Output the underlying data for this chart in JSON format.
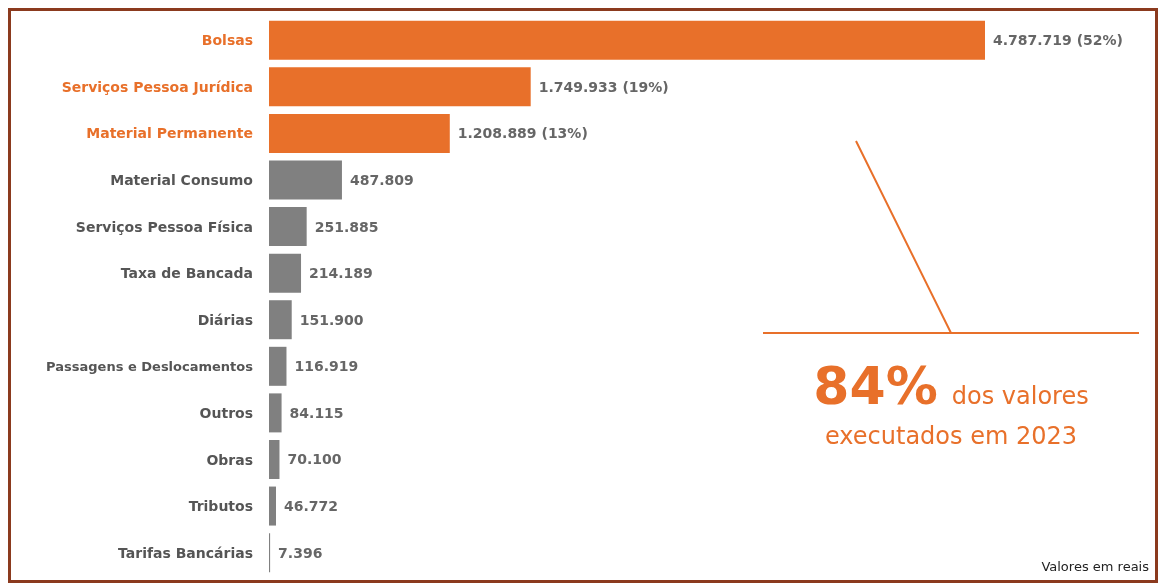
{
  "chart_data": {
    "type": "bar",
    "orientation": "horizontal",
    "categories": [
      "Bolsas",
      "Serviços Pessoa Jurídica",
      "Material Permanente",
      "Material Consumo",
      "Serviços Pessoa Física",
      "Taxa de Bancada",
      "Diárias",
      "Passagens e Deslocamentos",
      "Outros",
      "Obras",
      "Tributos",
      "Tarifas Bancárias"
    ],
    "values": [
      4787719,
      1749933,
      1208889,
      487809,
      251885,
      214189,
      151900,
      116919,
      84115,
      70100,
      46772,
      7396
    ],
    "colors": [
      "#e8702a",
      "#e8702a",
      "#e8702a",
      "#808080",
      "#808080",
      "#808080",
      "#808080",
      "#808080",
      "#808080",
      "#808080",
      "#808080",
      "#808080"
    ],
    "value_labels": [
      "4.787.719 (52%)",
      "1.749.933 (19%)",
      "1.208.889 (13%)",
      "487.809",
      "251.885",
      "214.189",
      "151.900",
      "116.919",
      "84.115",
      "70.100",
      "46.772",
      "7.396"
    ],
    "annotations": [
      "84% dos valores executados em 2023",
      "Valores em reais"
    ]
  }
}
